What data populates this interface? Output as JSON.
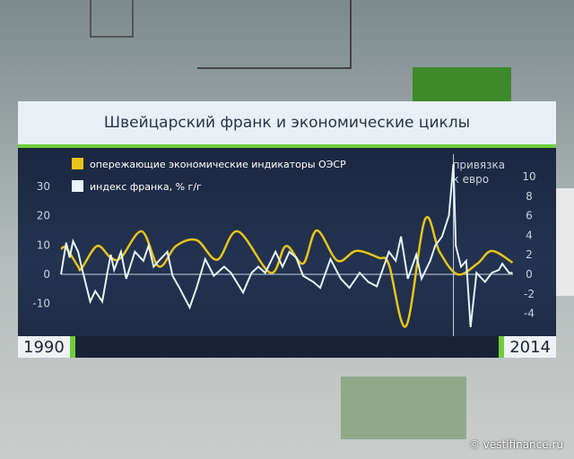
{
  "chart_data": {
    "type": "line",
    "title": "Швейцарский франк и экономические циклы",
    "x_start_label": "1990",
    "x_end_label": "2014",
    "xlim": [
      1990,
      2015
    ],
    "left_axis": {
      "ylim": [
        -15,
        40
      ],
      "ticks": [
        30,
        20,
        10,
        0,
        -10
      ]
    },
    "right_axis": {
      "ylim": [
        -5,
        12
      ],
      "ticks": [
        10,
        8,
        6,
        4,
        2,
        0,
        -2,
        -4
      ]
    },
    "annotation": {
      "text_line1": "привязка",
      "text_line2": "к евро",
      "x": 2011.77
    },
    "legend_position": "top-left",
    "series": [
      {
        "name": "опережающие экономические индикаторы ОЭСР",
        "axis": "right",
        "color": "#e8c41a",
        "x": [
          1990.0,
          1990.29,
          1990.95,
          1991.14,
          1992.0,
          1992.76,
          1993.33,
          1994.48,
          1995.43,
          1996.38,
          1997.52,
          1998.67,
          1999.81,
          2001.62,
          2002.48,
          2003.43,
          2004.19,
          2005.33,
          2006.38,
          2007.62,
          2008.19,
          2009.14,
          2010.19,
          2011.0,
          2012.0,
          2013.1,
          2013.9,
          2015.05
        ],
        "y": [
          2.6,
          2.7,
          0.8,
          0.6,
          2.9,
          1.7,
          1.7,
          4.4,
          0.8,
          2.9,
          3.5,
          1.5,
          4.4,
          0.15,
          2.9,
          1.1,
          4.5,
          1.4,
          2.4,
          1.7,
          1.0,
          -5.3,
          5.6,
          2.3,
          0,
          1.1,
          2.4,
          1.2
        ]
      },
      {
        "name": "индекс франка, % г/г",
        "axis": "left",
        "color": "#e6f4fb",
        "x": [
          1990.0,
          1990.29,
          1990.48,
          1990.67,
          1990.95,
          1991.14,
          1991.43,
          1991.62,
          1991.9,
          1992.29,
          1992.57,
          1992.76,
          1992.95,
          1993.33,
          1993.62,
          1994.1,
          1994.57,
          1994.86,
          1995.14,
          1995.43,
          1995.9,
          1996.19,
          1996.57,
          1997.14,
          1997.52,
          1998.0,
          1998.48,
          1999.05,
          1999.43,
          2000.1,
          2000.57,
          2000.95,
          2001.33,
          2001.9,
          2002.29,
          2002.67,
          2003.05,
          2003.43,
          2004.0,
          2004.38,
          2004.95,
          2005.52,
          2006.0,
          2006.57,
          2007.05,
          2007.52,
          2008.19,
          2008.57,
          2008.86,
          2009.24,
          2009.71,
          2010.0,
          2010.48,
          2010.76,
          2011.14,
          2011.52,
          2011.77,
          2011.9,
          2012.19,
          2012.48,
          2012.72,
          2013.05,
          2013.52,
          2013.9,
          2014.29,
          2014.48,
          2014.86,
          2015.05
        ],
        "y": [
          0,
          10.8,
          5.7,
          11.3,
          7.7,
          2.6,
          -4.6,
          -9.3,
          -5.7,
          -9.3,
          0.5,
          6.7,
          1.5,
          7.7,
          -1.5,
          7.7,
          4.6,
          9.8,
          2.6,
          4.6,
          7.7,
          -0.5,
          -4.6,
          -11.3,
          -4.6,
          5.2,
          -0.5,
          2.6,
          0.5,
          -6.2,
          0.5,
          2.6,
          0.5,
          7.7,
          2.6,
          7.7,
          5.7,
          -0.5,
          -2.6,
          -4.6,
          5.2,
          -1.5,
          -4.6,
          0.5,
          -2.6,
          -4.1,
          7.7,
          4.6,
          12.9,
          -1.5,
          6.7,
          -1.5,
          4.6,
          9.8,
          12.9,
          20.1,
          37.6,
          9.8,
          2.6,
          4.6,
          -18,
          0.5,
          -2.6,
          0.5,
          1.5,
          3.6,
          0.5,
          0.5
        ]
      }
    ]
  },
  "watermark": "© vestifinance.ru"
}
